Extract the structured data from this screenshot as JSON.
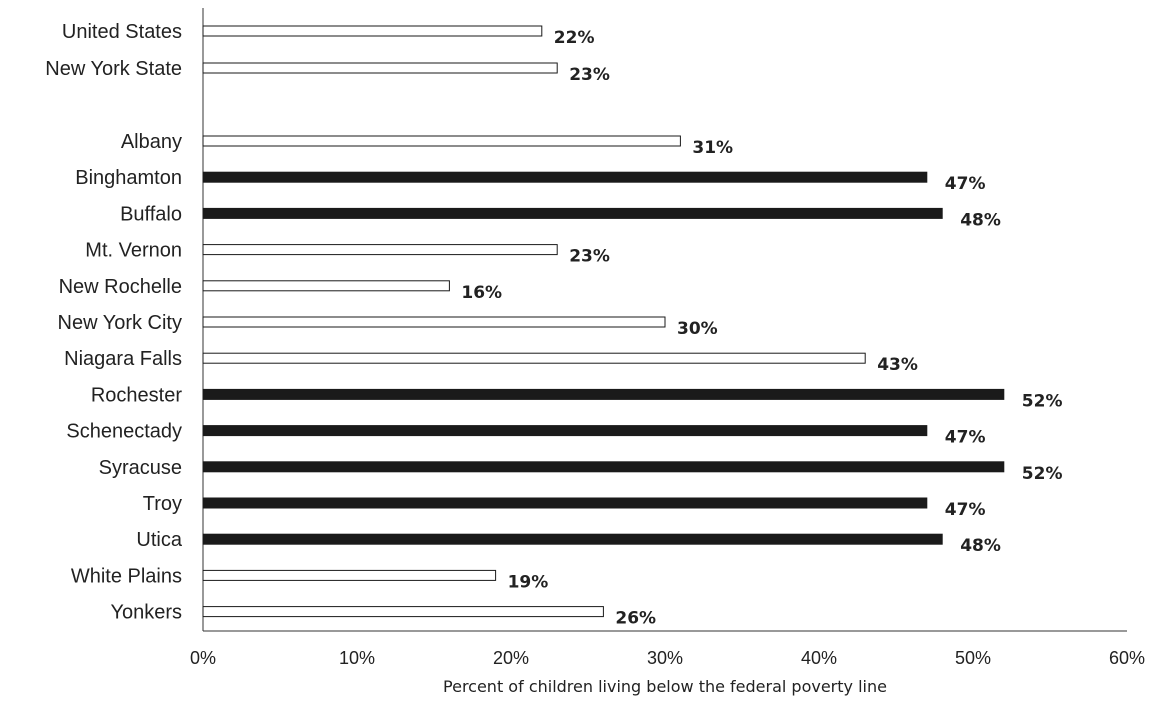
{
  "chart_data": {
    "type": "bar",
    "orientation": "horizontal",
    "xlabel": "Percent of children living below the federal poverty line",
    "xlim": [
      0,
      60
    ],
    "xticks": [
      "0%",
      "10%",
      "20%",
      "30%",
      "40%",
      "50%",
      "60%"
    ],
    "grid": false,
    "legend": false,
    "colors": {
      "highlight": "#1a1a1a",
      "normal": "#ffffff",
      "stroke": "#1a1a1a"
    },
    "bars": [
      {
        "category": "United States",
        "value": 22,
        "label": "22%",
        "highlight": false
      },
      {
        "category": "New York State",
        "value": 23,
        "label": "23%",
        "highlight": false
      },
      {
        "category": "Albany",
        "value": 31,
        "label": "31%",
        "highlight": false
      },
      {
        "category": "Binghamton",
        "value": 47,
        "label": "47%",
        "highlight": true
      },
      {
        "category": "Buffalo",
        "value": 48,
        "label": "48%",
        "highlight": true
      },
      {
        "category": "Mt. Vernon",
        "value": 23,
        "label": "23%",
        "highlight": false
      },
      {
        "category": "New Rochelle",
        "value": 16,
        "label": "16%",
        "highlight": false
      },
      {
        "category": "New York City",
        "value": 30,
        "label": "30%",
        "highlight": false
      },
      {
        "category": "Niagara Falls",
        "value": 43,
        "label": "43%",
        "highlight": false
      },
      {
        "category": "Rochester",
        "value": 52,
        "label": "52%",
        "highlight": true
      },
      {
        "category": "Schenectady",
        "value": 47,
        "label": "47%",
        "highlight": true
      },
      {
        "category": "Syracuse",
        "value": 52,
        "label": "52%",
        "highlight": true
      },
      {
        "category": "Troy",
        "value": 47,
        "label": "47%",
        "highlight": true
      },
      {
        "category": "Utica",
        "value": 48,
        "label": "48%",
        "highlight": true
      },
      {
        "category": "White Plains",
        "value": 19,
        "label": "19%",
        "highlight": false
      },
      {
        "category": "Yonkers",
        "value": 26,
        "label": "26%",
        "highlight": false
      }
    ]
  }
}
